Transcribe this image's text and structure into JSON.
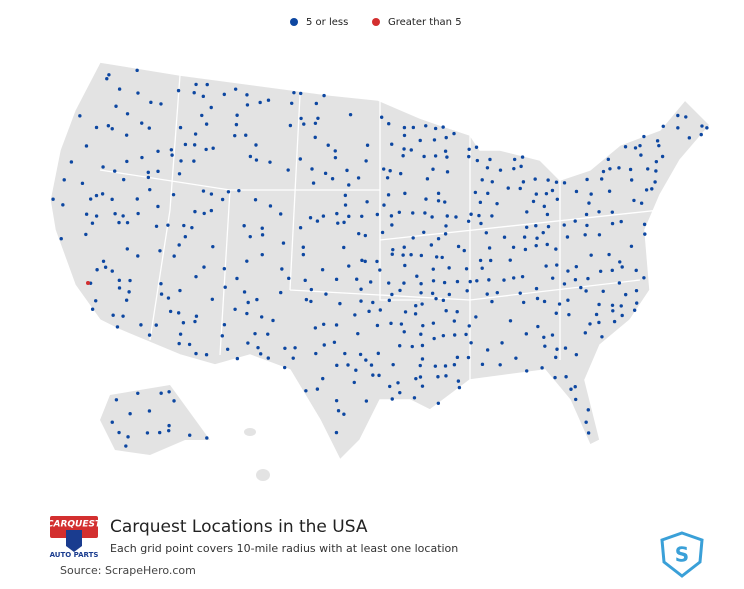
{
  "legend": [
    {
      "label": "5 or less",
      "color": "#0d47a1"
    },
    {
      "label": "Greater than 5",
      "color": "#d32f2f"
    }
  ],
  "logo": {
    "name": "CARQUEST",
    "tagline": "AUTO PARTS"
  },
  "title": "Carquest Locations in the USA",
  "subtitle": "Each grid point covers 10-mile radius with at least one location",
  "source": "Source: ScrapeHero.com"
}
